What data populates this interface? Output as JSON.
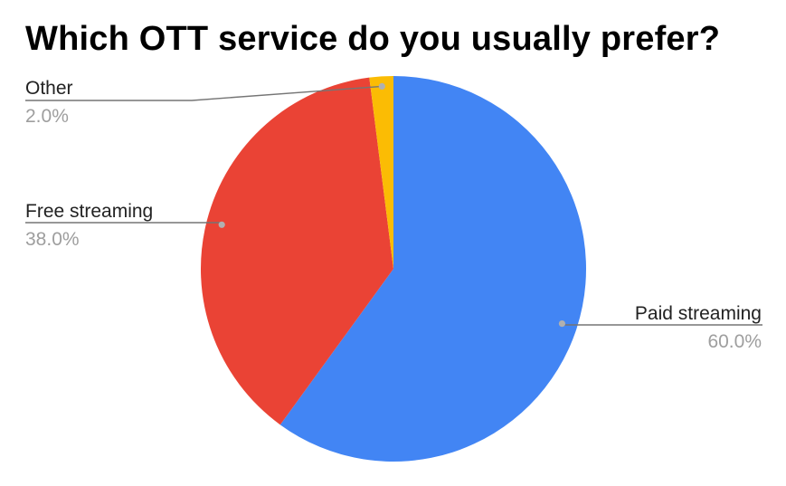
{
  "chart_data": {
    "type": "pie",
    "title": "Which OTT service do you usually prefer?",
    "slices": [
      {
        "label": "Paid streaming",
        "value": 60.0,
        "percent_label": "60.0%",
        "color": "#4285f4"
      },
      {
        "label": "Free streaming",
        "value": 38.0,
        "percent_label": "38.0%",
        "color": "#ea4335"
      },
      {
        "label": "Other",
        "value": 2.0,
        "percent_label": "2.0%",
        "color": "#fbbc04"
      }
    ],
    "start_angle": "12 o'clock",
    "direction": "clockwise",
    "labels": "outside with leader lines",
    "leader_line_color": "#757575"
  }
}
